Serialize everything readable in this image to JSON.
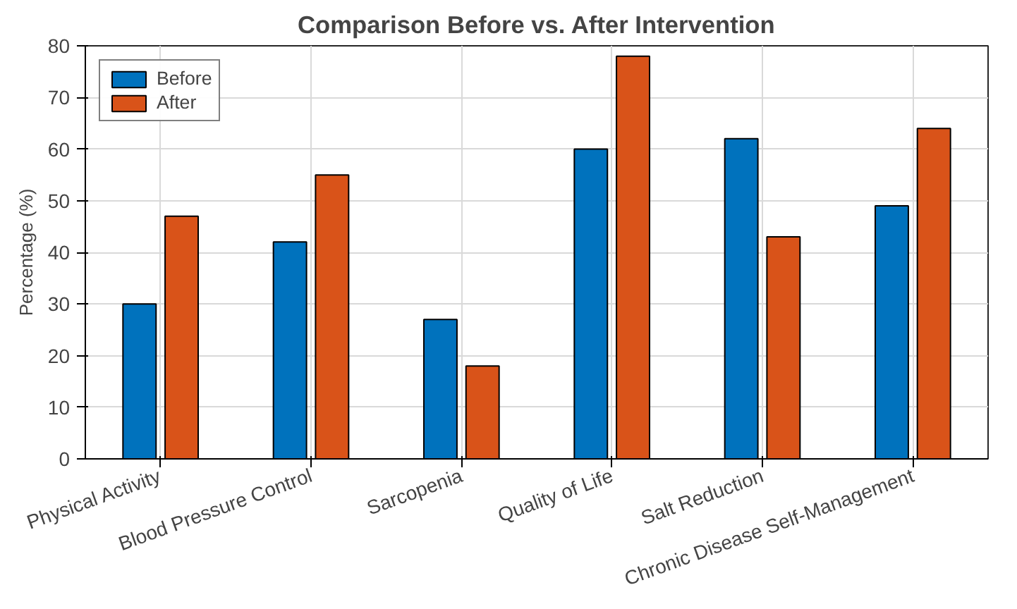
{
  "chart_data": {
    "type": "bar",
    "title": "Comparison Before vs. After Intervention",
    "ylabel": "Percentage (%)",
    "categories": [
      "Physical Activity",
      "Blood Pressure Control",
      "Sarcopenia",
      "Quality of Life",
      "Salt Reduction",
      "Chronic Disease Self-Management"
    ],
    "series": [
      {
        "name": "Before",
        "color": "#0072bd",
        "values": [
          30,
          42,
          27,
          60,
          62,
          49
        ]
      },
      {
        "name": "After",
        "color": "#d95319",
        "values": [
          47,
          55,
          18,
          78,
          43,
          64
        ]
      }
    ],
    "ylim": [
      0,
      80
    ],
    "yticks": [
      0,
      10,
      20,
      30,
      40,
      50,
      60,
      70,
      80
    ],
    "grid": true,
    "legend": "top left"
  }
}
